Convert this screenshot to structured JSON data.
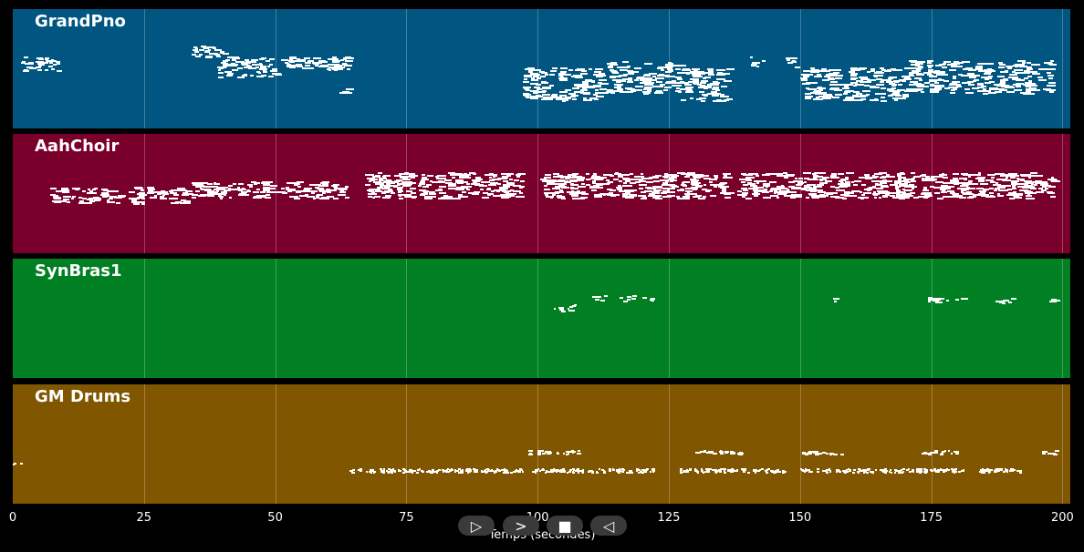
{
  "tracks": [
    {
      "name": "GrandPno",
      "color": "#005680"
    },
    {
      "name": "AahChoir",
      "color": "#7a002c"
    },
    {
      "name": "SynBras1",
      "color": "#008022"
    },
    {
      "name": "GM Drums",
      "color": "#805600"
    }
  ],
  "axis": {
    "title": "Temps (secondes)",
    "xmin": 0,
    "xmax": 201.5,
    "ticks": [
      "0",
      "25",
      "50",
      "75",
      "100",
      "125",
      "150",
      "175",
      "200"
    ]
  },
  "controls": {
    "play_icon": "▷",
    "forward_icon": ">",
    "stop_icon": "■",
    "back_icon": "◁"
  }
}
